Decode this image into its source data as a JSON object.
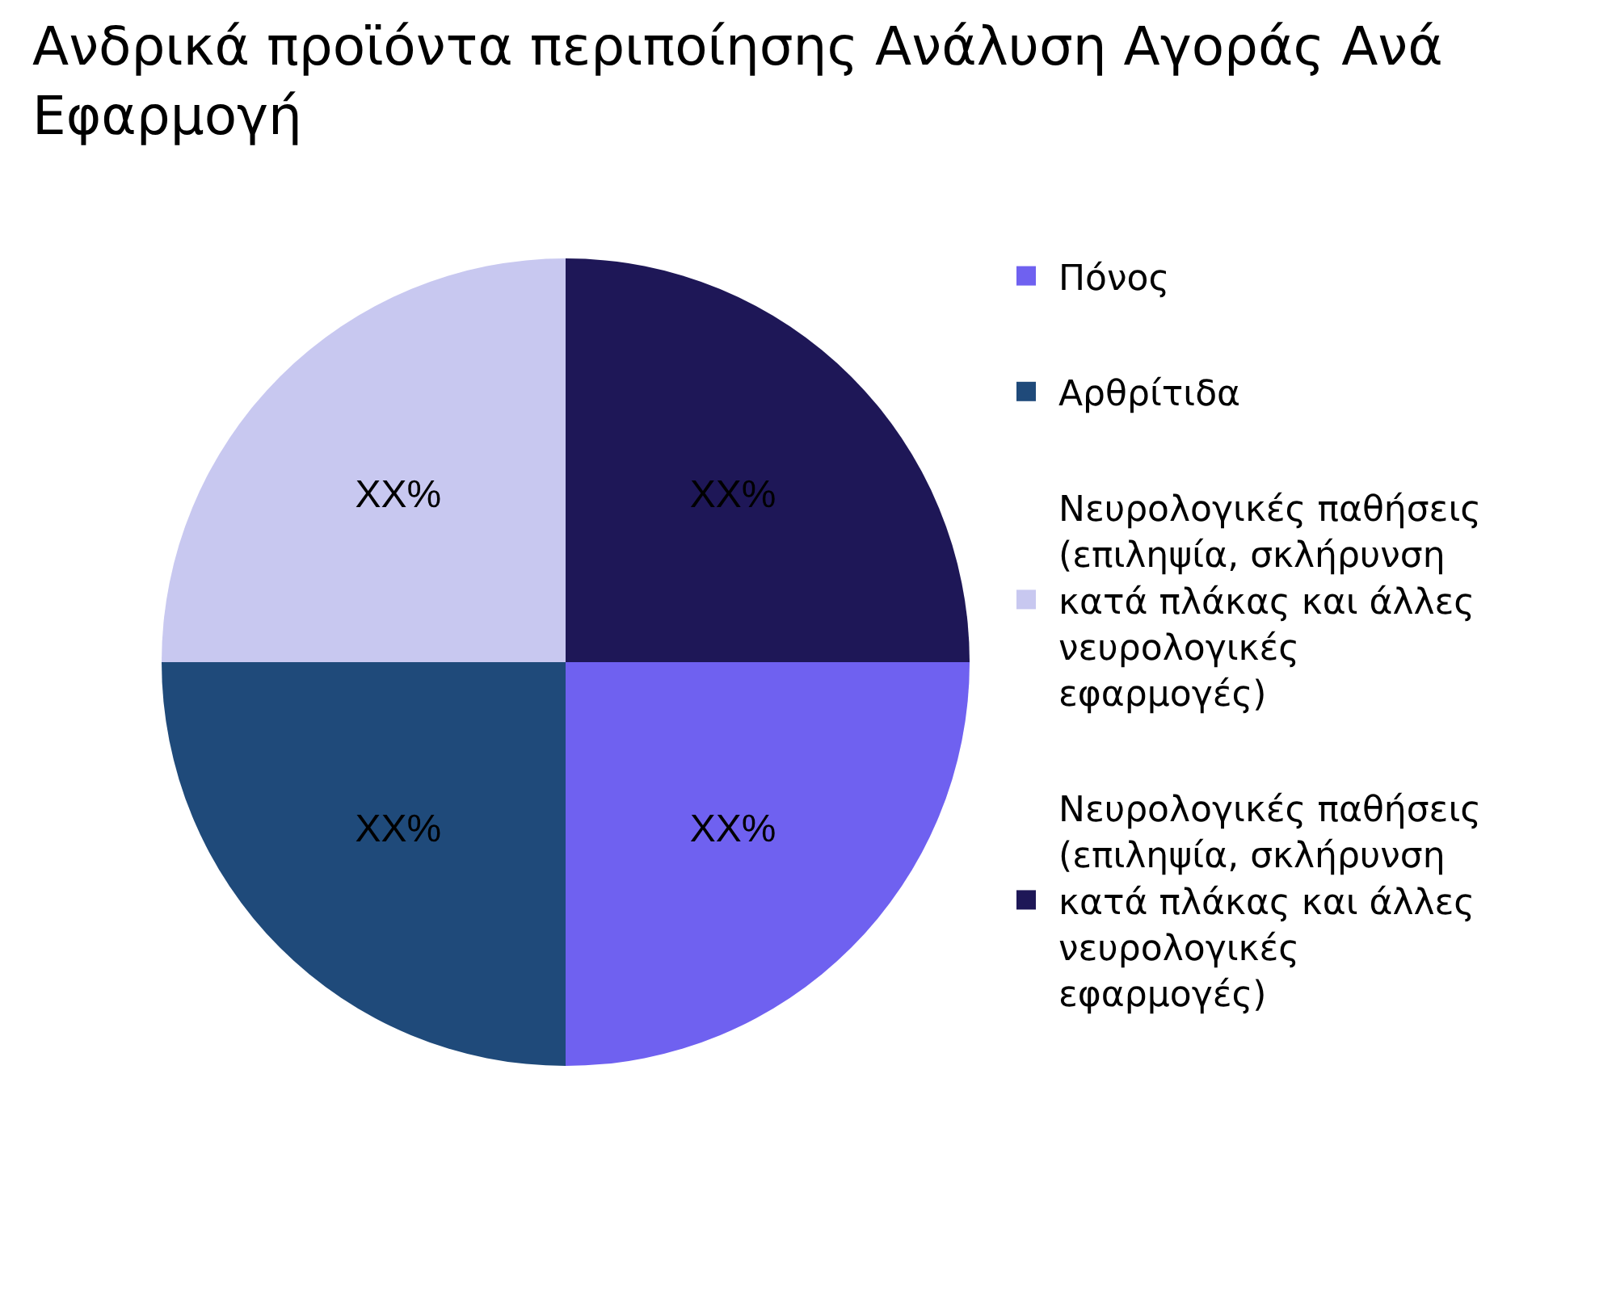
{
  "chart_data": {
    "type": "pie",
    "title": "Ανδρικά προϊόντα περιποίησης Ανάλυση Αγοράς Ανά Εφαρμογή",
    "categories": [
      "Πόνος",
      "Αρθρίτιδα",
      "Νευρολογικές παθήσεις (επιληψία, σκλήρυνση κατά πλάκας και άλλες νευρολογικές εφαρμογές)",
      "Νευρολογικές παθήσεις (επιληψία, σκλήρυνση κατά πλάκας και άλλες νευρολογικές εφαρμογές)"
    ],
    "values": [
      25,
      25,
      25,
      25
    ],
    "value_labels": [
      "XX%",
      "XX%",
      "XX%",
      "XX%"
    ],
    "colors": [
      "#6f61f0",
      "#1f4a7a",
      "#c8c8f0",
      "#1e1757"
    ],
    "legend": "right"
  }
}
